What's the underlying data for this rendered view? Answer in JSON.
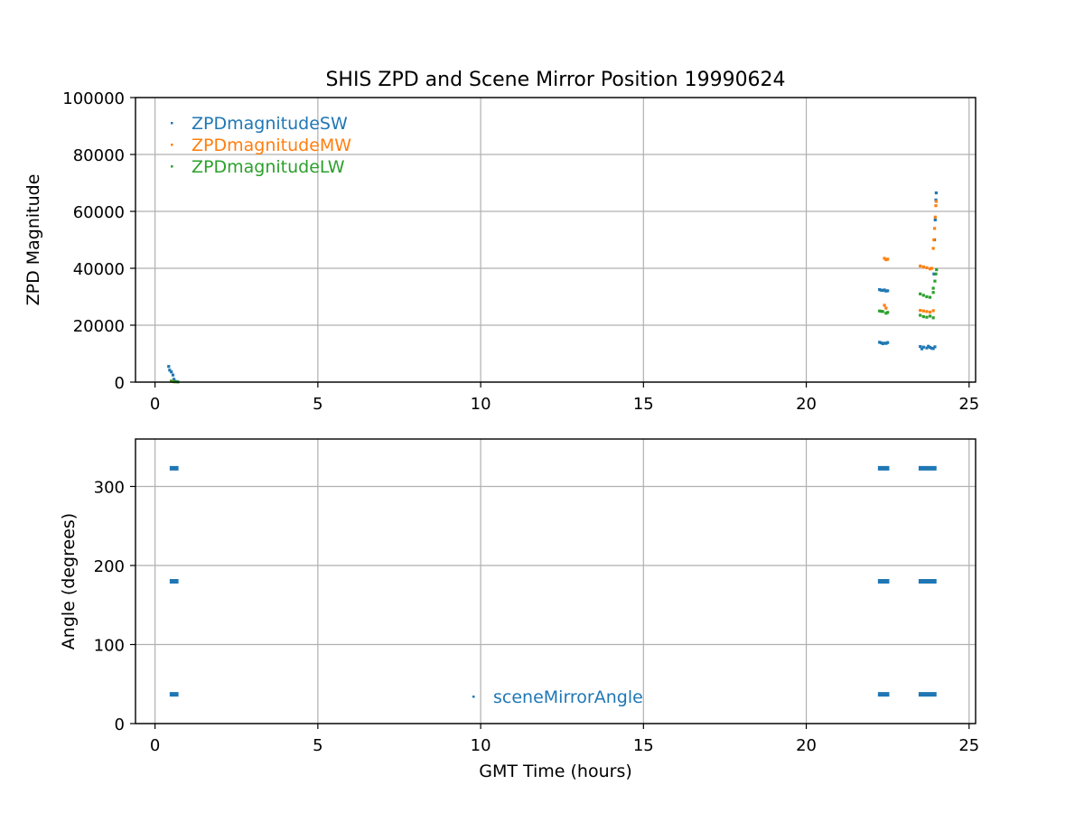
{
  "figure": {
    "title": "SHIS ZPD and Scene Mirror Position 19990624",
    "xlabel": "GMT Time (hours)"
  },
  "chart_data": [
    {
      "type": "scatter",
      "title": "SHIS ZPD and Scene Mirror Position 19990624",
      "xlabel": "",
      "ylabel": "ZPD Magnitude",
      "xlim": [
        -0.6,
        25.2
      ],
      "ylim": [
        0,
        100000
      ],
      "xticks": [
        0,
        5,
        10,
        15,
        20,
        25
      ],
      "yticks": [
        0,
        20000,
        40000,
        60000,
        80000,
        100000
      ],
      "grid": true,
      "legend": "upper-left",
      "series": [
        {
          "name": "ZPDmagnitudeSW",
          "color": "#1f77b4",
          "points": [
            [
              0.42,
              5500
            ],
            [
              0.45,
              4200
            ],
            [
              0.5,
              3600
            ],
            [
              0.55,
              2500
            ],
            [
              0.58,
              1000
            ],
            [
              0.62,
              300
            ],
            [
              0.7,
              100
            ],
            [
              22.25,
              32500
            ],
            [
              22.3,
              32300
            ],
            [
              22.35,
              32200
            ],
            [
              22.4,
              32400
            ],
            [
              22.45,
              32000
            ],
            [
              22.5,
              32100
            ],
            [
              22.25,
              14000
            ],
            [
              22.3,
              13800
            ],
            [
              22.35,
              13500
            ],
            [
              22.4,
              13700
            ],
            [
              22.45,
              13600
            ],
            [
              22.5,
              13900
            ],
            [
              23.5,
              12500
            ],
            [
              23.6,
              12300
            ],
            [
              23.7,
              12000
            ],
            [
              23.8,
              12200
            ],
            [
              23.9,
              11800
            ],
            [
              23.95,
              12400
            ],
            [
              23.55,
              11700
            ],
            [
              23.75,
              12600
            ],
            [
              23.85,
              11900
            ],
            [
              23.92,
              38000
            ],
            [
              23.94,
              50000
            ],
            [
              23.96,
              57000
            ],
            [
              23.98,
              64000
            ],
            [
              23.99,
              66500
            ]
          ]
        },
        {
          "name": "ZPDmagnitudeMW",
          "color": "#ff7f0e",
          "points": [
            [
              0.5,
              400
            ],
            [
              0.55,
              200
            ],
            [
              0.6,
              100
            ],
            [
              22.4,
              43500
            ],
            [
              22.45,
              43000
            ],
            [
              22.5,
              43200
            ],
            [
              22.4,
              27000
            ],
            [
              22.45,
              26000
            ],
            [
              23.5,
              40800
            ],
            [
              23.6,
              40500
            ],
            [
              23.7,
              40200
            ],
            [
              23.8,
              39800
            ],
            [
              23.85,
              40000
            ],
            [
              23.5,
              25200
            ],
            [
              23.6,
              25000
            ],
            [
              23.7,
              24800
            ],
            [
              23.8,
              24600
            ],
            [
              23.9,
              25100
            ],
            [
              23.9,
              47000
            ],
            [
              23.92,
              50000
            ],
            [
              23.94,
              54000
            ],
            [
              23.96,
              58000
            ],
            [
              23.98,
              62000
            ],
            [
              23.99,
              63500
            ]
          ]
        },
        {
          "name": "ZPDmagnitudeLW",
          "color": "#2ca02c",
          "points": [
            [
              0.5,
              300
            ],
            [
              0.6,
              150
            ],
            [
              0.7,
              80
            ],
            [
              22.25,
              25000
            ],
            [
              22.3,
              24900
            ],
            [
              22.35,
              24800
            ],
            [
              22.45,
              24200
            ],
            [
              22.5,
              24500
            ],
            [
              23.5,
              31000
            ],
            [
              23.6,
              30500
            ],
            [
              23.7,
              30000
            ],
            [
              23.8,
              29800
            ],
            [
              23.9,
              31500
            ],
            [
              23.5,
              23500
            ],
            [
              23.6,
              23000
            ],
            [
              23.7,
              22800
            ],
            [
              23.8,
              23200
            ],
            [
              23.9,
              22600
            ],
            [
              23.9,
              33000
            ],
            [
              23.95,
              35500
            ],
            [
              23.98,
              38000
            ],
            [
              24.0,
              39500
            ]
          ]
        }
      ]
    },
    {
      "type": "scatter",
      "title": "",
      "xlabel": "GMT Time (hours)",
      "ylabel": "Angle (degrees)",
      "xlim": [
        -0.6,
        25.2
      ],
      "ylim": [
        0,
        360
      ],
      "xticks": [
        0,
        5,
        10,
        15,
        20,
        25
      ],
      "yticks": [
        0,
        100,
        200,
        300
      ],
      "grid": true,
      "legend": "lower-center",
      "series": [
        {
          "name": "sceneMirrorAngle",
          "color": "#1f77b4",
          "segments": [
            {
              "x_start": 0.45,
              "x_end": 0.72,
              "y": 323
            },
            {
              "x_start": 0.45,
              "x_end": 0.72,
              "y": 180
            },
            {
              "x_start": 0.45,
              "x_end": 0.72,
              "y": 37
            },
            {
              "x_start": 22.2,
              "x_end": 22.55,
              "y": 323
            },
            {
              "x_start": 22.2,
              "x_end": 22.55,
              "y": 180
            },
            {
              "x_start": 22.2,
              "x_end": 22.55,
              "y": 37
            },
            {
              "x_start": 23.45,
              "x_end": 24.0,
              "y": 323
            },
            {
              "x_start": 23.45,
              "x_end": 24.0,
              "y": 180
            },
            {
              "x_start": 23.45,
              "x_end": 24.0,
              "y": 37
            }
          ]
        }
      ]
    }
  ]
}
